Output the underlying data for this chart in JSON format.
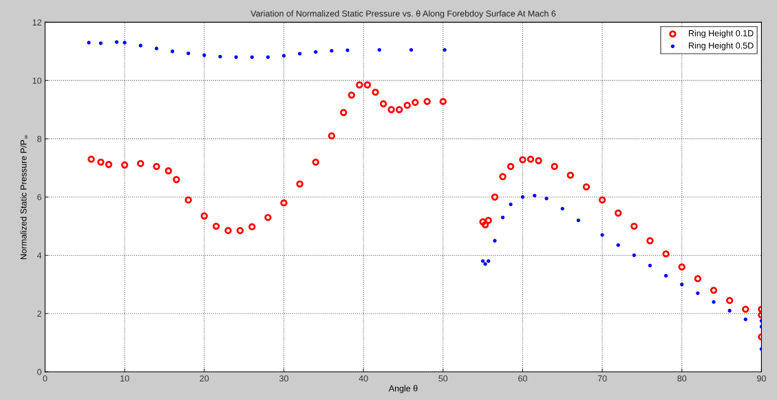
{
  "chart_data": {
    "type": "scatter",
    "title": "Variation of Normalized Static Pressure vs. θ Along Forebdoy Surface At Mach 6",
    "xlabel": "Angle θ",
    "ylabel": "Normalized Static Pressure P/P$_{∞}$",
    "xlim": [
      0,
      90
    ],
    "ylim": [
      0,
      12
    ],
    "xticks": [
      0,
      10,
      20,
      30,
      40,
      50,
      60,
      70,
      80,
      90
    ],
    "yticks": [
      0,
      2,
      4,
      6,
      8,
      10,
      12
    ],
    "grid": true,
    "legend": "top right",
    "marker": "circle",
    "series": [
      {
        "name": "Ring Height 0.1D",
        "color": "#ff0000",
        "x": [
          5.8,
          7,
          8,
          10,
          12,
          14,
          15.5,
          16.5,
          18,
          20,
          21.5,
          23,
          24.5,
          26,
          28,
          30,
          32,
          34,
          36,
          37.5,
          38.5,
          39.5,
          40.5,
          41.5,
          42.5,
          43.5,
          44.5,
          45.5,
          46.5,
          48,
          50,
          55,
          55.3,
          55.7,
          56.5,
          57.5,
          58.5,
          60,
          61,
          62,
          64,
          66,
          68,
          70,
          72,
          74,
          76,
          78,
          80,
          82,
          84,
          86,
          88,
          90,
          90,
          90
        ],
        "values": [
          7.3,
          7.2,
          7.12,
          7.1,
          7.15,
          7.05,
          6.9,
          6.6,
          5.9,
          5.35,
          5.0,
          4.85,
          4.85,
          4.98,
          5.3,
          5.8,
          6.45,
          7.2,
          8.1,
          8.9,
          9.5,
          9.85,
          9.85,
          9.6,
          9.2,
          9.0,
          9.0,
          9.15,
          9.25,
          9.28,
          9.28,
          5.15,
          5.05,
          5.2,
          6.0,
          6.7,
          7.05,
          7.28,
          7.3,
          7.25,
          7.05,
          6.75,
          6.35,
          5.9,
          5.45,
          5.0,
          4.5,
          4.05,
          3.6,
          3.2,
          2.8,
          2.45,
          2.15,
          1.95,
          2.15,
          1.2
        ]
      },
      {
        "name": "Ring Height 0.5D",
        "color": "#0000ff",
        "x": [
          5.5,
          7,
          9,
          10,
          12,
          14,
          16,
          18,
          20,
          22,
          24,
          26,
          28,
          30,
          32,
          34,
          36,
          38,
          42,
          46,
          50.2,
          55,
          55.3,
          55.7,
          56.5,
          57.5,
          58.5,
          60,
          61.5,
          63,
          65,
          67,
          70,
          72,
          74,
          76,
          78,
          80,
          82,
          84,
          86,
          88,
          90,
          90,
          90
        ],
        "values": [
          11.3,
          11.28,
          11.32,
          11.3,
          11.2,
          11.1,
          11.0,
          10.93,
          10.87,
          10.82,
          10.8,
          10.8,
          10.8,
          10.85,
          10.92,
          10.98,
          11.02,
          11.04,
          11.05,
          11.05,
          11.05,
          3.8,
          3.7,
          3.8,
          4.5,
          5.3,
          5.75,
          6.0,
          6.05,
          5.95,
          5.6,
          5.2,
          4.7,
          4.35,
          4.0,
          3.65,
          3.3,
          3.0,
          2.7,
          2.4,
          2.1,
          1.8,
          1.55,
          1.75,
          0.78
        ]
      }
    ]
  }
}
